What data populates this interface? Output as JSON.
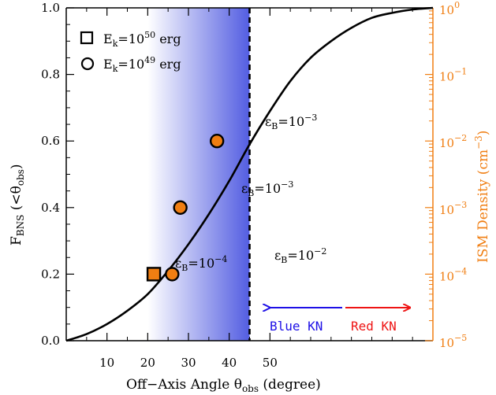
{
  "chart_data": {
    "type": "line",
    "xlabel_main": "Off−Axis Angle θ",
    "xlabel_sub": "obs",
    "xlabel_tail": " (degree)",
    "ylabel_main": "F",
    "ylabel_sub": "BNS",
    "ylabel_tail": " (<θ",
    "ylabel_tail_sub": "obs",
    "ylabel_close": ")",
    "ylabel_right_main": "ISM Density (cm",
    "ylabel_right_sup": "−3",
    "ylabel_right_close": ")",
    "xlim": [
      0,
      90
    ],
    "ylim": [
      0,
      1
    ],
    "ylim_right": [
      -5,
      0
    ],
    "right_scale": "log",
    "x_ticks": [
      {
        "value": 10,
        "label": "10"
      },
      {
        "value": 20,
        "label": "20"
      },
      {
        "value": 30,
        "label": "30"
      },
      {
        "value": 40,
        "label": "40"
      },
      {
        "value": 50,
        "label": "50"
      }
    ],
    "y_ticks": [
      "0.0",
      "0.2",
      "0.4",
      "0.6",
      "0.8",
      "1.0"
    ],
    "y_tick_values": [
      0,
      0.2,
      0.4,
      0.6,
      0.8,
      1.0
    ],
    "right_ticks": [
      {
        "exp": 0,
        "label": "10",
        "sup": "0"
      },
      {
        "exp": -1,
        "label": "10",
        "sup": "−1"
      },
      {
        "exp": -2,
        "label": "10",
        "sup": "−2"
      },
      {
        "exp": -3,
        "label": "10",
        "sup": "−3"
      },
      {
        "exp": -4,
        "label": "10",
        "sup": "−4"
      },
      {
        "exp": -5,
        "label": "10",
        "sup": "−5"
      }
    ],
    "curve": {
      "name": "F_BNS",
      "x": [
        0,
        5,
        10,
        15,
        20,
        25,
        30,
        35,
        40,
        45,
        50,
        55,
        60,
        65,
        70,
        75,
        80,
        85,
        90
      ],
      "y": [
        0.0,
        0.02,
        0.05,
        0.09,
        0.14,
        0.21,
        0.29,
        0.38,
        0.48,
        0.59,
        0.69,
        0.78,
        0.85,
        0.9,
        0.94,
        0.97,
        0.985,
        0.995,
        1.0
      ]
    },
    "vline_x": 45,
    "shade_x": [
      20,
      45
    ],
    "points": [
      {
        "marker": "square",
        "x": 21.5,
        "y": 0.2,
        "label": "ε",
        "label_sub": "B",
        "label_eq": "=10",
        "label_sup": "−4"
      },
      {
        "marker": "circle",
        "x": 26,
        "y": 0.2,
        "label": "ε",
        "label_sub": "B",
        "label_eq": "=10",
        "label_sup": "−2"
      },
      {
        "marker": "circle",
        "x": 28,
        "y": 0.4,
        "label": "ε",
        "label_sub": "B",
        "label_eq": "=10",
        "label_sup": "−3"
      },
      {
        "marker": "circle",
        "x": 37,
        "y": 0.6,
        "label": "ε",
        "label_sub": "B",
        "label_eq": "=10",
        "label_sup": "−3"
      }
    ],
    "legend": [
      {
        "marker": "square",
        "text": "E",
        "sub": "k",
        "eq": "=10",
        "sup": "50",
        "tail": " erg"
      },
      {
        "marker": "circle",
        "text": "E",
        "sub": "k",
        "eq": "=10",
        "sup": "49",
        "tail": " erg"
      }
    ],
    "kn_labels": {
      "blue": "Blue KN",
      "red": "Red KN"
    },
    "colors": {
      "point_fill": "#f07e12",
      "right_axis": "#f07e12",
      "blue": "#1e10e6",
      "red": "#ee1414",
      "shade": "#4a55e0"
    }
  }
}
